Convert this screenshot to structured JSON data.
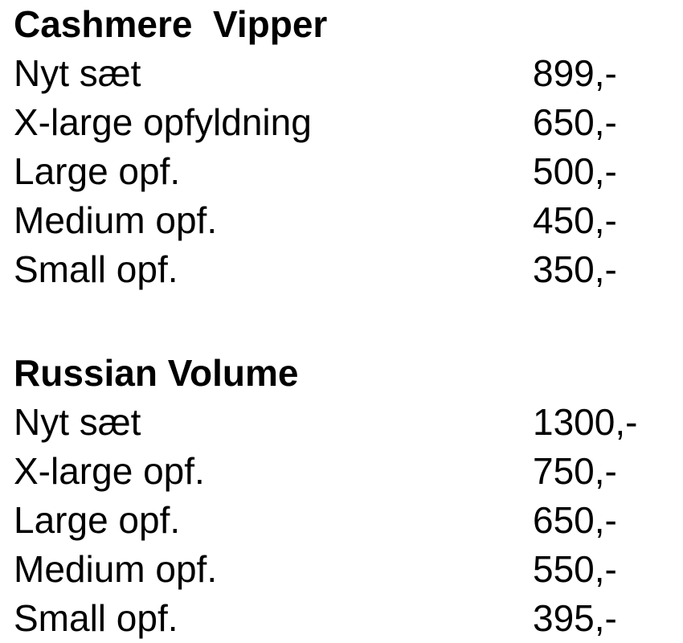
{
  "sections": [
    {
      "title": "Cashmere  Vipper",
      "items": [
        {
          "name": "Nyt sæt",
          "price": "899,-"
        },
        {
          "name": "X-large opfyldning",
          "price": "650,-"
        },
        {
          "name": "Large opf.",
          "price": "500,-"
        },
        {
          "name": "Medium opf.",
          "price": "450,-"
        },
        {
          "name": "Small opf.",
          "price": "350,-"
        }
      ]
    },
    {
      "title": "Russian Volume",
      "items": [
        {
          "name": "Nyt sæt",
          "price": "1300,-"
        },
        {
          "name": "X-large opf.",
          "price": "750,-"
        },
        {
          "name": "Large opf.",
          "price": "650,-"
        },
        {
          "name": "Medium opf.",
          "price": "550,-"
        },
        {
          "name": "Small opf.",
          "price": "395,-"
        }
      ]
    }
  ]
}
